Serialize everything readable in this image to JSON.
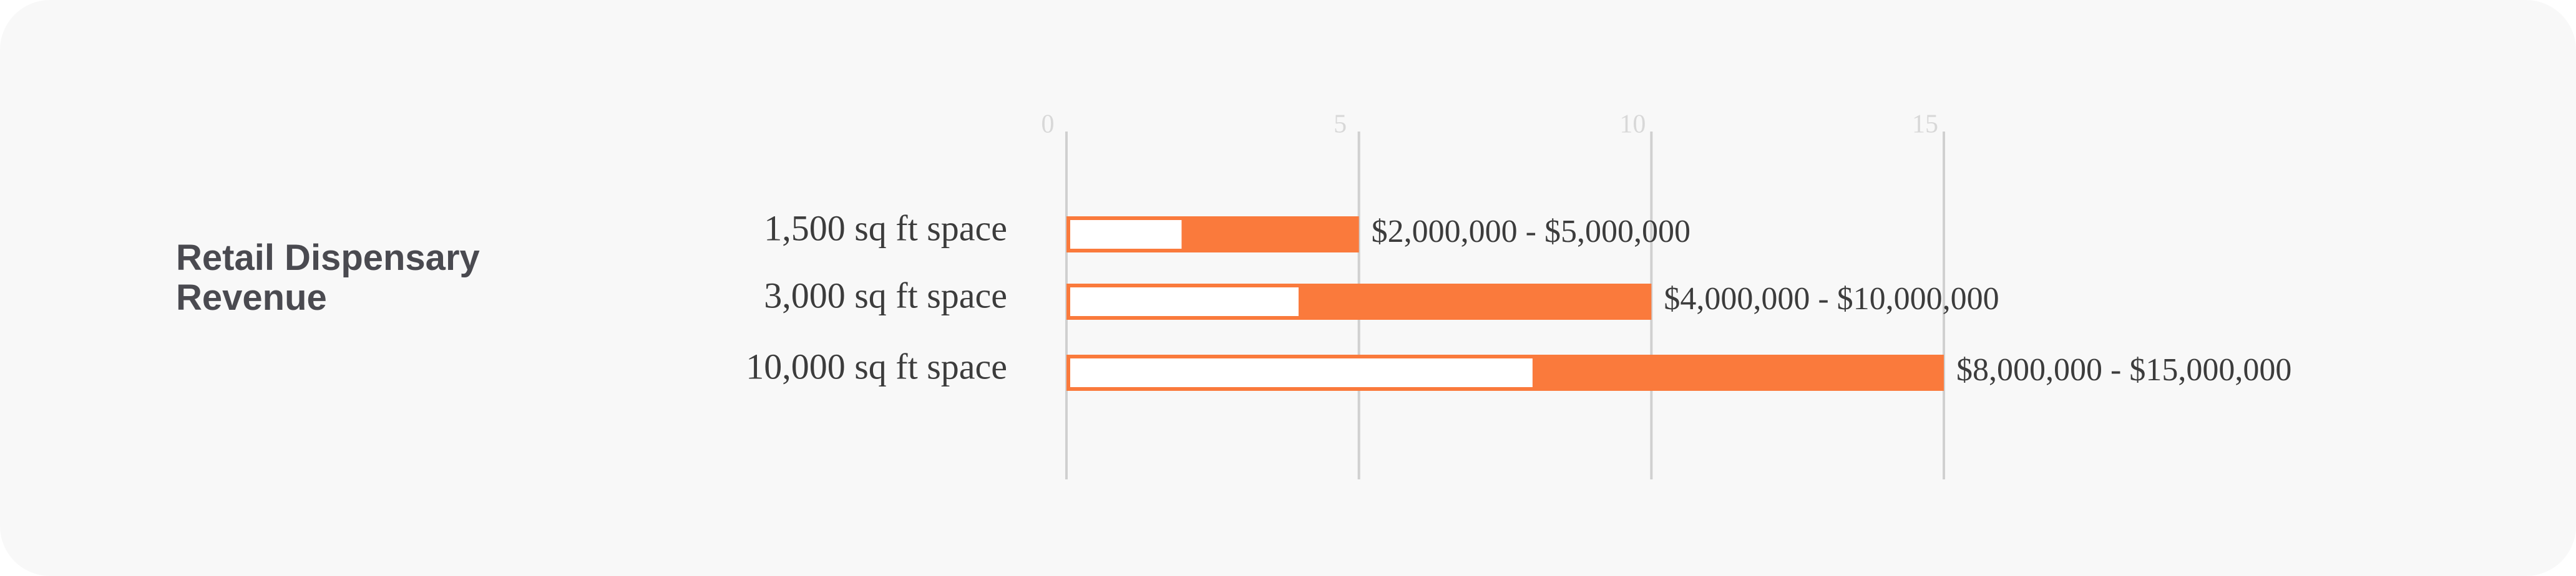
{
  "chart_data": {
    "type": "range-bar",
    "title": "Retail Dispensary Revenue",
    "categories": [
      "1,500 sq ft space",
      "3,000 sq ft space",
      "10,000 sq ft space"
    ],
    "lows": [
      2,
      4,
      8
    ],
    "highs": [
      5,
      10,
      15
    ],
    "value_labels": [
      "$2,000,000 - $5,000,000",
      "$4,000,000 - $10,000,000",
      "$8,000,000 - $15,000,000"
    ],
    "color": "#fa7a3c",
    "xlim": [
      0,
      15
    ],
    "xticks": [
      0,
      5,
      10,
      15
    ],
    "grid": true
  }
}
